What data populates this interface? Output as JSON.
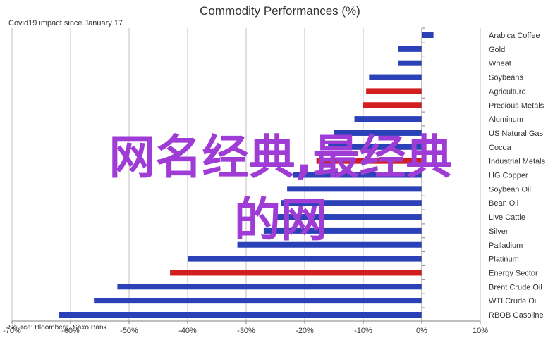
{
  "chart_data": {
    "type": "bar",
    "orientation": "horizontal",
    "title": "Commodity Performances (%)",
    "subtitle": "Covid19 impact since January 17",
    "source": "Source: Bloomberg, Saxo Bank",
    "xlim": [
      -70,
      10
    ],
    "xticks": [
      -70,
      -60,
      -50,
      -40,
      -30,
      -20,
      -10,
      0,
      10
    ],
    "tick_suffix": "%",
    "grid": true,
    "colors": {
      "blue": "#2a41b8",
      "red": "#d21e1e"
    },
    "categories": [
      "Arabica Coffee",
      "Gold",
      "Wheat",
      "Soybeans",
      "Agriculture",
      "Precious Metals",
      "Aluminum",
      "US Natural Gas",
      "Cocoa",
      "Industrial Metals",
      "HG Copper",
      "Soybean Oil",
      "Bean Oil",
      "Live Cattle",
      "Silver",
      "Palladium",
      "Platinum",
      "Energy Sector",
      "Brent Crude Oil",
      "WTI Crude Oil",
      "RBOB Gasoline"
    ],
    "values": [
      2,
      -4,
      -4,
      -9,
      -9.5,
      -10,
      -11.5,
      -15,
      -16,
      -18,
      -22,
      -23,
      -24,
      -25,
      -27,
      -31.5,
      -40,
      -43,
      -52,
      -56,
      -62
    ],
    "bar_colors": [
      "blue",
      "blue",
      "blue",
      "blue",
      "red",
      "red",
      "blue",
      "blue",
      "blue",
      "red",
      "blue",
      "blue",
      "blue",
      "blue",
      "blue",
      "blue",
      "blue",
      "red",
      "blue",
      "blue",
      "blue"
    ]
  },
  "overlay_text": {
    "line1": "网名经典,最经典",
    "line2": "的网",
    "color": "#a03cd6"
  }
}
